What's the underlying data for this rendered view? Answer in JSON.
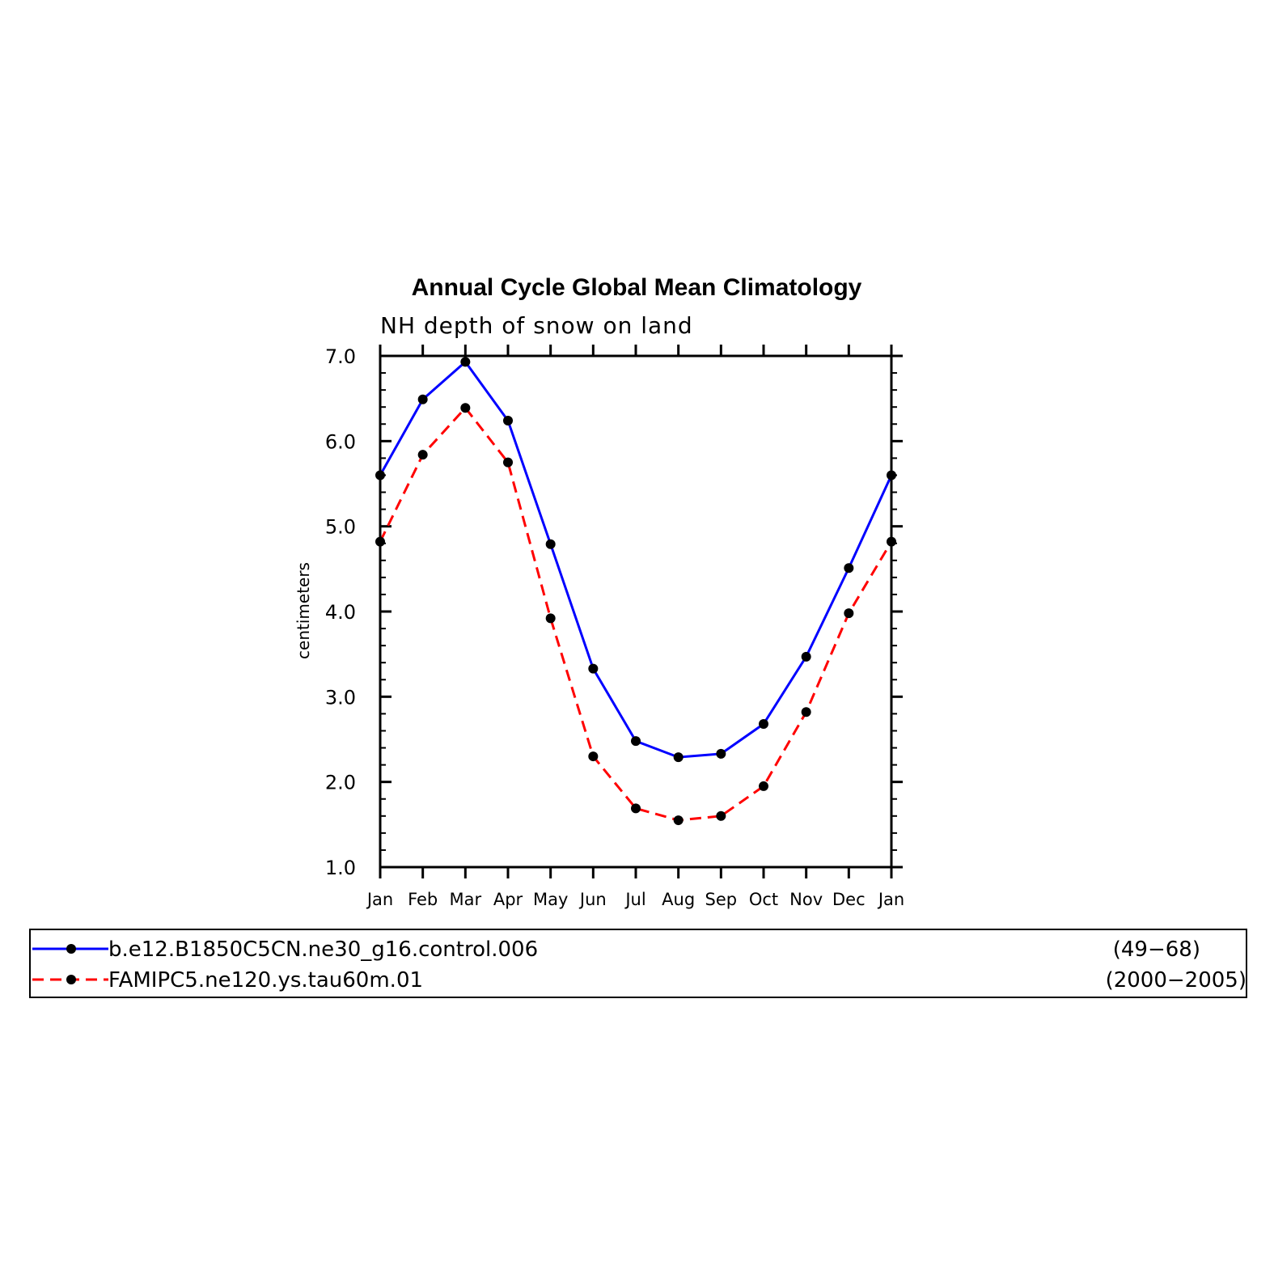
{
  "chart_data": {
    "type": "line",
    "title": "Annual Cycle Global Mean Climatology",
    "subtitle": "NH depth of snow on land",
    "xlabel": "",
    "ylabel": "centimeters",
    "categories": [
      "Jan",
      "Feb",
      "Mar",
      "Apr",
      "May",
      "Jun",
      "Jul",
      "Aug",
      "Sep",
      "Oct",
      "Nov",
      "Dec",
      "Jan"
    ],
    "ylim": [
      1.0,
      7.0
    ],
    "yticks": [
      "1.0",
      "2.0",
      "3.0",
      "4.0",
      "5.0",
      "6.0",
      "7.0"
    ],
    "grid": false,
    "legend_position": "bottom",
    "series": [
      {
        "name": "b.e12.B1850C5CN.ne30_g16.control.006",
        "years": "(49−68)",
        "color": "#0000ff",
        "dash": "solid",
        "values": [
          5.6,
          6.49,
          6.93,
          6.24,
          4.79,
          3.33,
          2.48,
          2.29,
          2.33,
          2.68,
          3.47,
          4.51,
          5.6
        ]
      },
      {
        "name": "FAMIPC5.ne120.ys.tau60m.01",
        "years": "(2000−2005)",
        "color": "#ff0000",
        "dash": "dashed",
        "values": [
          4.82,
          5.84,
          6.39,
          5.75,
          3.92,
          2.3,
          1.69,
          1.55,
          1.6,
          1.95,
          2.82,
          3.98,
          4.82
        ]
      }
    ]
  }
}
